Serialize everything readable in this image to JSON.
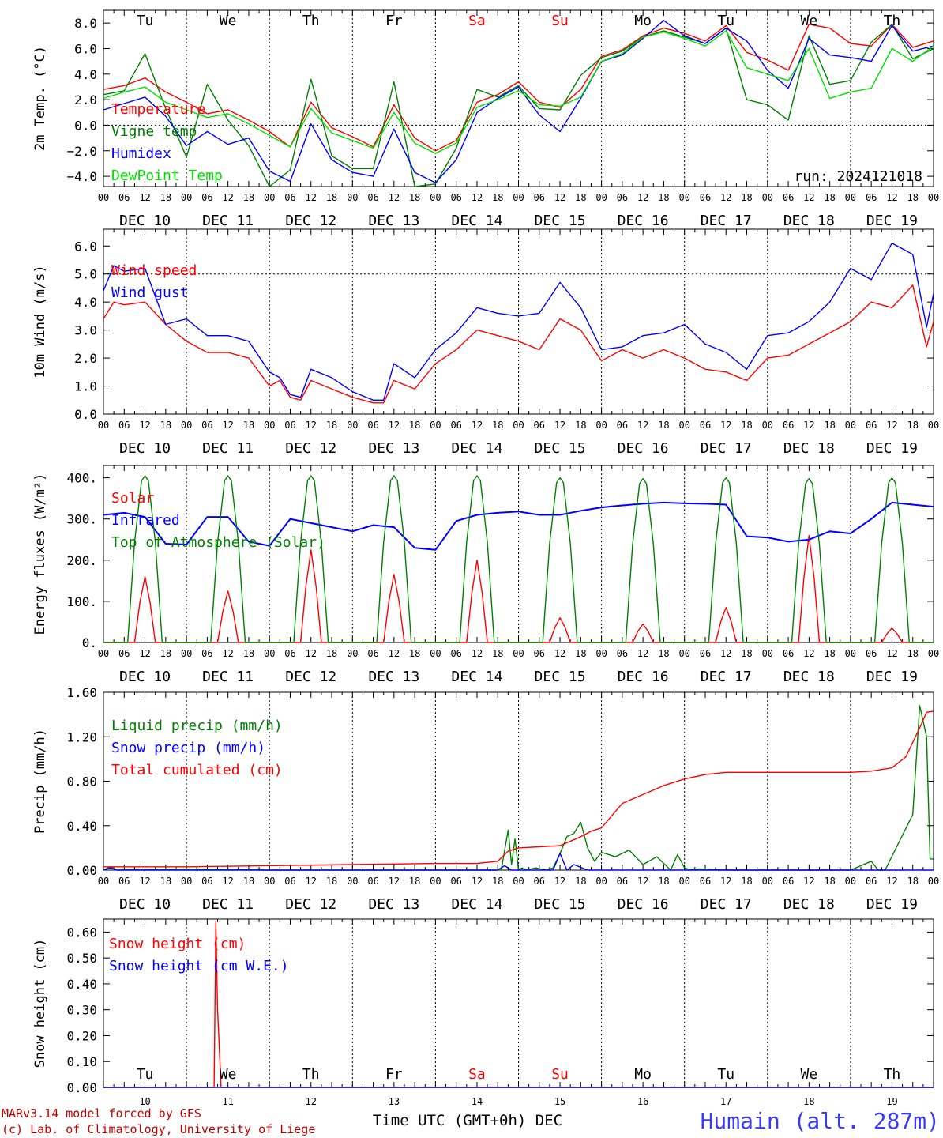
{
  "run_label": "run: 2024121018",
  "footer": {
    "model": "MARv3.14 model forced by GFS",
    "credit": "(c) Lab. of Climatology, University of Liege",
    "xtitle": "Time UTC (GMT+0h) DEC",
    "station": "Humain (alt. 287m)"
  },
  "days": [
    {
      "dow": "Tu",
      "date": "DEC 10",
      "num": "10",
      "weekend": false
    },
    {
      "dow": "We",
      "date": "DEC 11",
      "num": "11",
      "weekend": false
    },
    {
      "dow": "Th",
      "date": "DEC 12",
      "num": "12",
      "weekend": false
    },
    {
      "dow": "Fr",
      "date": "DEC 13",
      "num": "13",
      "weekend": false
    },
    {
      "dow": "Sa",
      "date": "DEC 14",
      "num": "14",
      "weekend": true
    },
    {
      "dow": "Su",
      "date": "DEC 15",
      "num": "15",
      "weekend": true
    },
    {
      "dow": "Mo",
      "date": "DEC 16",
      "num": "16",
      "weekend": false
    },
    {
      "dow": "Tu",
      "date": "DEC 17",
      "num": "17",
      "weekend": false
    },
    {
      "dow": "We",
      "date": "DEC 18",
      "num": "18",
      "weekend": false
    },
    {
      "dow": "Th",
      "date": "DEC 19",
      "num": "19",
      "weekend": false
    }
  ],
  "hour_labels": [
    "00",
    "06",
    "12",
    "18"
  ],
  "colors": {
    "red": "#ff0000",
    "green": "#008000",
    "blue": "#0000ff",
    "lightgreen": "#00e000",
    "weekend": "#ff0000"
  },
  "chart_data": [
    {
      "id": "temp",
      "type": "line",
      "ylabel": "2m Temp. (°C)",
      "ylim": [
        -4.8,
        9.0
      ],
      "yticks": [
        -4.0,
        -2.0,
        0.0,
        2.0,
        4.0,
        6.0,
        8.0
      ],
      "ytick_labels": [
        "−4.0",
        "−2.0",
        "0.0",
        "2.0",
        "4.0",
        "6.0",
        "8.0"
      ],
      "dashed_ref": 0.0,
      "x_unit": "hours since DEC 10 00 UTC",
      "series": [
        {
          "name": "Temperature",
          "color": "red",
          "x": [
            0,
            6,
            12,
            18,
            24,
            30,
            36,
            42,
            48,
            54,
            60,
            66,
            72,
            78,
            84,
            90,
            96,
            102,
            108,
            114,
            120,
            126,
            132,
            138,
            144,
            150,
            156,
            162,
            168,
            174,
            180,
            186,
            192,
            198,
            204,
            210,
            216,
            222,
            228,
            234,
            240
          ],
          "y": [
            2.8,
            3.1,
            3.7,
            2.6,
            1.8,
            0.9,
            1.2,
            0.4,
            -0.5,
            -1.7,
            1.8,
            -0.2,
            -0.9,
            -1.7,
            1.6,
            -1.0,
            -2.0,
            -1.2,
            1.8,
            2.4,
            3.4,
            1.8,
            1.4,
            2.8,
            5.4,
            5.9,
            7.0,
            7.6,
            7.2,
            6.6,
            7.8,
            5.7,
            5.1,
            4.3,
            7.9,
            7.6,
            6.4,
            6.2,
            7.9,
            6.1,
            6.6
          ]
        },
        {
          "name": "Vigne temp",
          "color": "green",
          "x": [
            0,
            6,
            12,
            18,
            24,
            30,
            36,
            42,
            48,
            54,
            60,
            66,
            72,
            78,
            84,
            90,
            96,
            102,
            108,
            114,
            120,
            126,
            132,
            138,
            144,
            150,
            156,
            162,
            168,
            174,
            180,
            186,
            192,
            198,
            204,
            210,
            216,
            222,
            228,
            234,
            240
          ],
          "y": [
            2.4,
            2.7,
            5.6,
            1.3,
            -2.5,
            3.2,
            0.4,
            -1.6,
            -4.8,
            -3.5,
            3.6,
            -2.4,
            -3.4,
            -3.4,
            3.4,
            -4.8,
            -4.6,
            -1.8,
            2.8,
            2.2,
            3.1,
            1.3,
            1.2,
            3.9,
            5.3,
            5.8,
            6.9,
            7.4,
            6.9,
            6.4,
            7.6,
            2.0,
            1.6,
            0.4,
            7.0,
            3.2,
            3.5,
            6.5,
            7.9,
            5.2,
            6.0
          ]
        },
        {
          "name": "Humidex",
          "color": "blue",
          "x": [
            0,
            6,
            12,
            18,
            24,
            30,
            36,
            42,
            48,
            54,
            60,
            66,
            72,
            78,
            84,
            90,
            96,
            102,
            108,
            114,
            120,
            126,
            132,
            138,
            144,
            150,
            156,
            162,
            168,
            174,
            180,
            186,
            192,
            198,
            204,
            210,
            216,
            222,
            228,
            234,
            240
          ],
          "y": [
            1.2,
            1.7,
            2.2,
            0.7,
            -1.6,
            -0.5,
            -1.5,
            -1.0,
            -3.6,
            -4.4,
            0.1,
            -2.7,
            -3.7,
            -4.0,
            -0.3,
            -3.7,
            -4.5,
            -2.7,
            1.0,
            2.1,
            3.0,
            0.8,
            -0.5,
            2.1,
            5.0,
            5.5,
            6.8,
            8.2,
            7.0,
            6.4,
            7.6,
            6.6,
            4.3,
            2.9,
            6.8,
            5.5,
            5.3,
            5.0,
            7.8,
            5.8,
            6.2
          ]
        },
        {
          "name": "DewPoint Temp",
          "color": "lightgreen",
          "x": [
            0,
            6,
            12,
            18,
            24,
            30,
            36,
            42,
            48,
            54,
            60,
            66,
            72,
            78,
            84,
            90,
            96,
            102,
            108,
            114,
            120,
            126,
            132,
            138,
            144,
            150,
            156,
            162,
            168,
            174,
            180,
            186,
            192,
            198,
            204,
            210,
            216,
            222,
            228,
            234,
            240
          ],
          "y": [
            2.1,
            2.6,
            3.0,
            1.8,
            1.2,
            0.6,
            0.9,
            0.1,
            -0.8,
            -1.7,
            1.3,
            -0.6,
            -1.2,
            -1.8,
            1.0,
            -1.4,
            -2.2,
            -1.4,
            1.4,
            2.0,
            2.7,
            1.6,
            1.5,
            2.2,
            5.0,
            5.6,
            6.9,
            7.3,
            6.8,
            6.2,
            7.4,
            4.5,
            4.0,
            3.5,
            6.0,
            2.1,
            2.6,
            2.9,
            6.0,
            5.0,
            6.2
          ]
        }
      ]
    },
    {
      "id": "wind",
      "type": "line",
      "ylabel": "10m Wind (m/s)",
      "ylim": [
        0,
        6.6
      ],
      "yticks": [
        0,
        1,
        2,
        3,
        4,
        5,
        6
      ],
      "ytick_labels": [
        "0.0",
        "1.0",
        "2.0",
        "3.0",
        "4.0",
        "5.0",
        "6.0"
      ],
      "dashed_ref": 5.0,
      "series": [
        {
          "name": "Wind speed",
          "color": "red",
          "x": [
            0,
            3,
            6,
            12,
            18,
            24,
            30,
            36,
            42,
            48,
            51,
            54,
            57,
            60,
            66,
            72,
            78,
            81,
            84,
            90,
            96,
            102,
            108,
            114,
            120,
            126,
            132,
            138,
            144,
            150,
            156,
            162,
            168,
            174,
            180,
            186,
            192,
            198,
            204,
            210,
            216,
            222,
            228,
            234,
            238,
            240
          ],
          "y": [
            3.4,
            4.0,
            3.9,
            4.0,
            3.2,
            2.6,
            2.2,
            2.2,
            2.0,
            1.0,
            1.2,
            0.6,
            0.5,
            1.2,
            0.9,
            0.6,
            0.4,
            0.4,
            1.2,
            0.9,
            1.8,
            2.3,
            3.0,
            2.8,
            2.6,
            2.3,
            3.4,
            3.0,
            1.9,
            2.3,
            2.0,
            2.3,
            2.0,
            1.6,
            1.5,
            1.2,
            2.0,
            2.1,
            2.5,
            2.9,
            3.3,
            4.0,
            3.8,
            4.6,
            2.4,
            3.3
          ]
        },
        {
          "name": "Wind gust",
          "color": "blue",
          "x": [
            0,
            3,
            6,
            12,
            18,
            24,
            30,
            36,
            42,
            48,
            51,
            54,
            57,
            60,
            66,
            72,
            78,
            81,
            84,
            90,
            96,
            102,
            108,
            114,
            120,
            126,
            132,
            138,
            144,
            150,
            156,
            162,
            168,
            174,
            180,
            186,
            192,
            198,
            204,
            210,
            216,
            222,
            228,
            234,
            238,
            240
          ],
          "y": [
            4.4,
            5.3,
            5.1,
            5.2,
            3.2,
            3.4,
            2.8,
            2.8,
            2.6,
            1.5,
            1.3,
            0.7,
            0.6,
            1.6,
            1.3,
            0.8,
            0.5,
            0.5,
            1.8,
            1.3,
            2.3,
            2.9,
            3.8,
            3.6,
            3.5,
            3.6,
            4.7,
            3.8,
            2.3,
            2.4,
            2.8,
            2.9,
            3.2,
            2.5,
            2.2,
            1.6,
            2.8,
            2.9,
            3.3,
            4.0,
            5.2,
            4.8,
            6.1,
            5.7,
            3.1,
            4.3
          ]
        }
      ]
    },
    {
      "id": "energy",
      "type": "line",
      "ylabel": "Energy fluxes (W/m²)",
      "ylim": [
        0,
        430
      ],
      "yticks": [
        0,
        100,
        200,
        300,
        400
      ],
      "ytick_labels": [
        "0.",
        "100.",
        "200.",
        "300.",
        "400."
      ],
      "series": [
        {
          "name": "Solar",
          "color": "red",
          "peaks": [
            160,
            125,
            225,
            165,
            200,
            60,
            45,
            85,
            260,
            35
          ]
        },
        {
          "name": "Infrared",
          "color": "blue",
          "x": [
            0,
            6,
            12,
            18,
            24,
            30,
            36,
            42,
            48,
            54,
            60,
            66,
            72,
            78,
            84,
            90,
            96,
            102,
            108,
            114,
            120,
            126,
            132,
            138,
            144,
            150,
            156,
            162,
            168,
            174,
            180,
            186,
            192,
            198,
            204,
            210,
            216,
            222,
            228,
            234,
            240
          ],
          "y": [
            310,
            315,
            305,
            240,
            238,
            305,
            305,
            245,
            235,
            300,
            290,
            280,
            270,
            285,
            280,
            230,
            225,
            295,
            310,
            315,
            318,
            310,
            310,
            320,
            328,
            333,
            337,
            340,
            338,
            337,
            335,
            258,
            255,
            245,
            250,
            270,
            265,
            300,
            340,
            335,
            330
          ]
        },
        {
          "name": "Top of Atmosphere (Solar)",
          "color": "green",
          "peaks": [
            405,
            405,
            405,
            405,
            405,
            400,
            398,
            400,
            398,
            400
          ]
        }
      ]
    },
    {
      "id": "precip",
      "type": "line",
      "ylabel": "Precip (mm/h)",
      "ylim": [
        0,
        1.6
      ],
      "yticks": [
        0,
        0.4,
        0.8,
        1.2,
        1.6
      ],
      "ytick_labels": [
        "0.00",
        "0.40",
        "0.80",
        "1.20",
        "1.60"
      ],
      "series": [
        {
          "name": "Liquid precip (mm/h)",
          "color": "green",
          "x": [
            0,
            2,
            4,
            24,
            48,
            96,
            115,
            117,
            118,
            119,
            120,
            121,
            122,
            125,
            128,
            130,
            132,
            134,
            136,
            138,
            140,
            142,
            144,
            148,
            152,
            156,
            160,
            164,
            166,
            168,
            170,
            172,
            180,
            216,
            222,
            224,
            226,
            234,
            236,
            238,
            239,
            240
          ],
          "y": [
            0.0,
            0.03,
            0.0,
            0.01,
            0.0,
            0.0,
            0.0,
            0.36,
            0.05,
            0.28,
            0.0,
            0.02,
            0.0,
            0.02,
            0.0,
            0.02,
            0.15,
            0.3,
            0.33,
            0.43,
            0.2,
            0.08,
            0.16,
            0.12,
            0.18,
            0.05,
            0.12,
            0.0,
            0.14,
            0.02,
            0.0,
            0.01,
            0.0,
            0.0,
            0.08,
            0.0,
            0.0,
            0.5,
            1.48,
            1.2,
            0.1,
            0.1
          ]
        },
        {
          "name": "Snow precip (mm/h)",
          "color": "blue",
          "x": [
            0,
            2,
            4,
            24,
            48,
            96,
            114,
            116,
            118,
            120,
            122,
            124,
            126,
            128,
            130,
            132,
            134,
            136,
            140,
            144,
            240
          ],
          "y": [
            0.0,
            0.02,
            0.0,
            0.0,
            0.0,
            0.0,
            0.0,
            0.04,
            0.0,
            0.0,
            0.0,
            0.0,
            0.0,
            0.0,
            0.0,
            0.15,
            0.0,
            0.05,
            0.0,
            0.0,
            0.0
          ]
        },
        {
          "name": "Total cumulated (cm)",
          "color": "red",
          "x": [
            0,
            24,
            48,
            72,
            96,
            108,
            114,
            117,
            120,
            126,
            132,
            138,
            141,
            144,
            150,
            156,
            162,
            168,
            174,
            180,
            192,
            204,
            216,
            222,
            228,
            232,
            236,
            238,
            240
          ],
          "y": [
            0.03,
            0.03,
            0.04,
            0.05,
            0.06,
            0.06,
            0.08,
            0.17,
            0.2,
            0.21,
            0.22,
            0.3,
            0.35,
            0.38,
            0.6,
            0.68,
            0.76,
            0.82,
            0.86,
            0.88,
            0.88,
            0.88,
            0.88,
            0.89,
            0.92,
            1.02,
            1.28,
            1.42,
            1.43
          ]
        }
      ]
    },
    {
      "id": "snow",
      "type": "line",
      "ylabel": "Snow height (cm)",
      "ylim": [
        0,
        0.65
      ],
      "yticks": [
        0,
        0.1,
        0.2,
        0.3,
        0.4,
        0.5,
        0.6
      ],
      "ytick_labels": [
        "0.00",
        "0.10",
        "0.20",
        "0.30",
        "0.40",
        "0.50",
        "0.60"
      ],
      "series": [
        {
          "name": "Snow height (cm)",
          "color": "red",
          "x": [
            0,
            30,
            32,
            32.5,
            33,
            34,
            36,
            240
          ],
          "y": [
            0.0,
            0.0,
            0.0,
            0.64,
            0.3,
            0.0,
            0.0,
            0.0
          ]
        },
        {
          "name": "Snow height (cm W.E.)",
          "color": "blue",
          "x": [
            0,
            240
          ],
          "y": [
            0.0,
            0.0
          ]
        }
      ]
    }
  ]
}
